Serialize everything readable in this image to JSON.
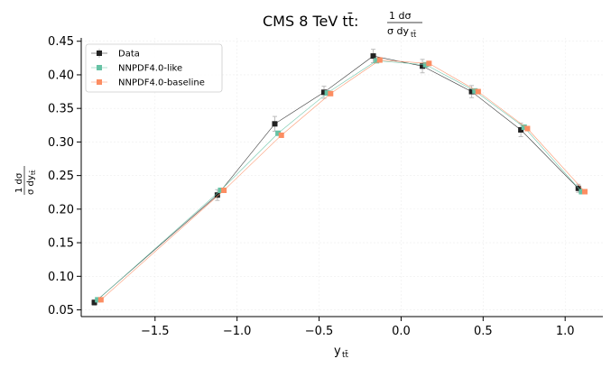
{
  "chart_data": {
    "type": "line",
    "title": "CMS 8 TeV t̄t: ¹⁄σ dσ/dyₜₜ",
    "title_main": "CMS 8 TeV tt̄:",
    "title_frac_num": "1  dσ",
    "title_frac_den": "σ dy",
    "title_frac_den_sub": "tt̄",
    "xlabel": "y",
    "xlabel_sub": "tt̄",
    "ylabel_num": "1  dσ",
    "ylabel_den": "σ dy",
    "ylabel_den_sub": "tt̄",
    "xlim": [
      -1.95,
      1.23
    ],
    "ylim": [
      0.04,
      0.455
    ],
    "xticks": [
      -1.5,
      -1.0,
      -0.5,
      0.0,
      0.5,
      1.0
    ],
    "xtick_labels": [
      "−1.5",
      "−1.0",
      "−0.5",
      "0.0",
      "0.5",
      "1.0"
    ],
    "yticks": [
      0.05,
      0.1,
      0.15,
      0.2,
      0.25,
      0.3,
      0.35,
      0.4,
      0.45
    ],
    "ytick_labels": [
      "0.05",
      "0.10",
      "0.15",
      "0.20",
      "0.25",
      "0.30",
      "0.35",
      "0.40",
      "0.45"
    ],
    "grid": true,
    "legend_position": "top-left",
    "x": [
      -1.85,
      -1.1,
      -0.75,
      -0.45,
      -0.15,
      0.15,
      0.45,
      0.75,
      1.1
    ],
    "series": [
      {
        "name": "Data",
        "color": "#222222",
        "x_offset": -0.02,
        "values": [
          0.061,
          0.221,
          0.327,
          0.374,
          0.428,
          0.413,
          0.375,
          0.318,
          0.231
        ],
        "errors": [
          0.004,
          0.008,
          0.011,
          0.009,
          0.01,
          0.01,
          0.009,
          0.01,
          0.006
        ]
      },
      {
        "name": "NNPDF4.0-like",
        "color": "#66c2a5",
        "x_offset": 0.0,
        "values": [
          0.065,
          0.228,
          0.313,
          0.373,
          0.421,
          0.415,
          0.376,
          0.322,
          0.226
        ],
        "errors": []
      },
      {
        "name": "NNPDF4.0-baseline",
        "color": "#fc8d62",
        "x_offset": 0.02,
        "values": [
          0.065,
          0.228,
          0.31,
          0.372,
          0.422,
          0.417,
          0.375,
          0.32,
          0.226
        ],
        "errors": []
      }
    ]
  }
}
